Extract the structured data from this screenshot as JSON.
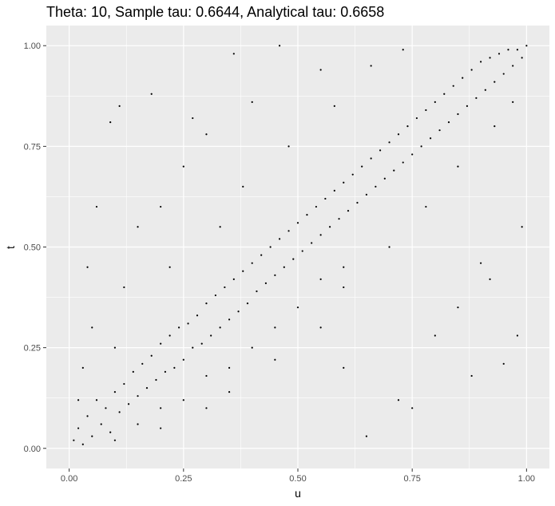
{
  "chart_data": {
    "type": "scatter",
    "title": "Theta: 10, Sample tau: 0.6644, Analytical tau: 0.6658",
    "xlabel": "u",
    "ylabel": "t",
    "xlim": [
      -0.05,
      1.05
    ],
    "ylim": [
      -0.05,
      1.05
    ],
    "x_ticks": [
      0.0,
      0.25,
      0.5,
      0.75,
      1.0
    ],
    "y_ticks": [
      0.0,
      0.25,
      0.5,
      0.75,
      1.0
    ],
    "x_tick_labels": [
      "0.00",
      "0.25",
      "0.50",
      "0.75",
      "1.00"
    ],
    "y_tick_labels": [
      "0.00",
      "0.25",
      "0.50",
      "0.75",
      "1.00"
    ],
    "grid": true,
    "panel_background": "#ebebeb",
    "grid_color": "#ffffff",
    "point_color": "#000000",
    "points": [
      [
        0.01,
        0.02
      ],
      [
        0.02,
        0.05
      ],
      [
        0.03,
        0.01
      ],
      [
        0.04,
        0.08
      ],
      [
        0.05,
        0.03
      ],
      [
        0.06,
        0.12
      ],
      [
        0.07,
        0.06
      ],
      [
        0.08,
        0.1
      ],
      [
        0.09,
        0.04
      ],
      [
        0.1,
        0.14
      ],
      [
        0.11,
        0.09
      ],
      [
        0.12,
        0.16
      ],
      [
        0.13,
        0.11
      ],
      [
        0.14,
        0.19
      ],
      [
        0.15,
        0.13
      ],
      [
        0.16,
        0.21
      ],
      [
        0.17,
        0.15
      ],
      [
        0.18,
        0.23
      ],
      [
        0.19,
        0.17
      ],
      [
        0.2,
        0.26
      ],
      [
        0.21,
        0.19
      ],
      [
        0.22,
        0.28
      ],
      [
        0.23,
        0.2
      ],
      [
        0.24,
        0.3
      ],
      [
        0.25,
        0.22
      ],
      [
        0.26,
        0.31
      ],
      [
        0.27,
        0.25
      ],
      [
        0.28,
        0.33
      ],
      [
        0.29,
        0.26
      ],
      [
        0.3,
        0.36
      ],
      [
        0.31,
        0.28
      ],
      [
        0.32,
        0.38
      ],
      [
        0.33,
        0.3
      ],
      [
        0.34,
        0.4
      ],
      [
        0.35,
        0.32
      ],
      [
        0.36,
        0.42
      ],
      [
        0.37,
        0.34
      ],
      [
        0.38,
        0.44
      ],
      [
        0.39,
        0.36
      ],
      [
        0.4,
        0.46
      ],
      [
        0.41,
        0.39
      ],
      [
        0.42,
        0.48
      ],
      [
        0.43,
        0.41
      ],
      [
        0.44,
        0.5
      ],
      [
        0.45,
        0.43
      ],
      [
        0.46,
        0.52
      ],
      [
        0.47,
        0.45
      ],
      [
        0.48,
        0.54
      ],
      [
        0.49,
        0.47
      ],
      [
        0.5,
        0.56
      ],
      [
        0.51,
        0.49
      ],
      [
        0.52,
        0.58
      ],
      [
        0.53,
        0.51
      ],
      [
        0.54,
        0.6
      ],
      [
        0.55,
        0.53
      ],
      [
        0.56,
        0.62
      ],
      [
        0.57,
        0.55
      ],
      [
        0.58,
        0.64
      ],
      [
        0.59,
        0.57
      ],
      [
        0.6,
        0.66
      ],
      [
        0.61,
        0.59
      ],
      [
        0.62,
        0.68
      ],
      [
        0.63,
        0.61
      ],
      [
        0.64,
        0.7
      ],
      [
        0.65,
        0.63
      ],
      [
        0.66,
        0.72
      ],
      [
        0.67,
        0.65
      ],
      [
        0.68,
        0.74
      ],
      [
        0.69,
        0.67
      ],
      [
        0.7,
        0.76
      ],
      [
        0.71,
        0.69
      ],
      [
        0.72,
        0.78
      ],
      [
        0.73,
        0.71
      ],
      [
        0.74,
        0.8
      ],
      [
        0.75,
        0.73
      ],
      [
        0.76,
        0.82
      ],
      [
        0.77,
        0.75
      ],
      [
        0.78,
        0.84
      ],
      [
        0.79,
        0.77
      ],
      [
        0.8,
        0.86
      ],
      [
        0.81,
        0.79
      ],
      [
        0.82,
        0.88
      ],
      [
        0.83,
        0.81
      ],
      [
        0.84,
        0.9
      ],
      [
        0.85,
        0.83
      ],
      [
        0.86,
        0.92
      ],
      [
        0.87,
        0.85
      ],
      [
        0.88,
        0.94
      ],
      [
        0.89,
        0.87
      ],
      [
        0.9,
        0.96
      ],
      [
        0.91,
        0.89
      ],
      [
        0.92,
        0.97
      ],
      [
        0.93,
        0.91
      ],
      [
        0.94,
        0.98
      ],
      [
        0.95,
        0.93
      ],
      [
        0.96,
        0.99
      ],
      [
        0.97,
        0.95
      ],
      [
        0.98,
        0.99
      ],
      [
        0.99,
        0.97
      ],
      [
        1.0,
        1.0
      ],
      [
        0.02,
        0.12
      ],
      [
        0.03,
        0.2
      ],
      [
        0.05,
        0.3
      ],
      [
        0.04,
        0.45
      ],
      [
        0.06,
        0.6
      ],
      [
        0.09,
        0.81
      ],
      [
        0.11,
        0.85
      ],
      [
        0.18,
        0.88
      ],
      [
        0.27,
        0.82
      ],
      [
        0.36,
        0.98
      ],
      [
        0.46,
        1.0
      ],
      [
        0.55,
        0.94
      ],
      [
        0.12,
        0.4
      ],
      [
        0.15,
        0.55
      ],
      [
        0.2,
        0.6
      ],
      [
        0.25,
        0.7
      ],
      [
        0.3,
        0.78
      ],
      [
        0.4,
        0.86
      ],
      [
        0.1,
        0.25
      ],
      [
        0.22,
        0.45
      ],
      [
        0.33,
        0.55
      ],
      [
        0.38,
        0.65
      ],
      [
        0.48,
        0.75
      ],
      [
        0.58,
        0.85
      ],
      [
        0.66,
        0.95
      ],
      [
        0.73,
        0.99
      ],
      [
        0.1,
        0.02
      ],
      [
        0.2,
        0.05
      ],
      [
        0.3,
        0.1
      ],
      [
        0.35,
        0.14
      ],
      [
        0.45,
        0.22
      ],
      [
        0.55,
        0.3
      ],
      [
        0.6,
        0.2
      ],
      [
        0.65,
        0.03
      ],
      [
        0.72,
        0.12
      ],
      [
        0.75,
        0.1
      ],
      [
        0.8,
        0.28
      ],
      [
        0.85,
        0.35
      ],
      [
        0.88,
        0.18
      ],
      [
        0.9,
        0.46
      ],
      [
        0.92,
        0.42
      ],
      [
        0.95,
        0.21
      ],
      [
        0.98,
        0.28
      ],
      [
        0.99,
        0.55
      ],
      [
        0.5,
        0.35
      ],
      [
        0.55,
        0.42
      ],
      [
        0.6,
        0.45
      ],
      [
        0.7,
        0.5
      ],
      [
        0.78,
        0.6
      ],
      [
        0.85,
        0.7
      ],
      [
        0.93,
        0.8
      ],
      [
        0.97,
        0.86
      ],
      [
        0.4,
        0.25
      ],
      [
        0.3,
        0.18
      ],
      [
        0.2,
        0.1
      ],
      [
        0.15,
        0.06
      ],
      [
        0.25,
        0.12
      ],
      [
        0.35,
        0.2
      ],
      [
        0.45,
        0.3
      ],
      [
        0.6,
        0.4
      ]
    ]
  }
}
